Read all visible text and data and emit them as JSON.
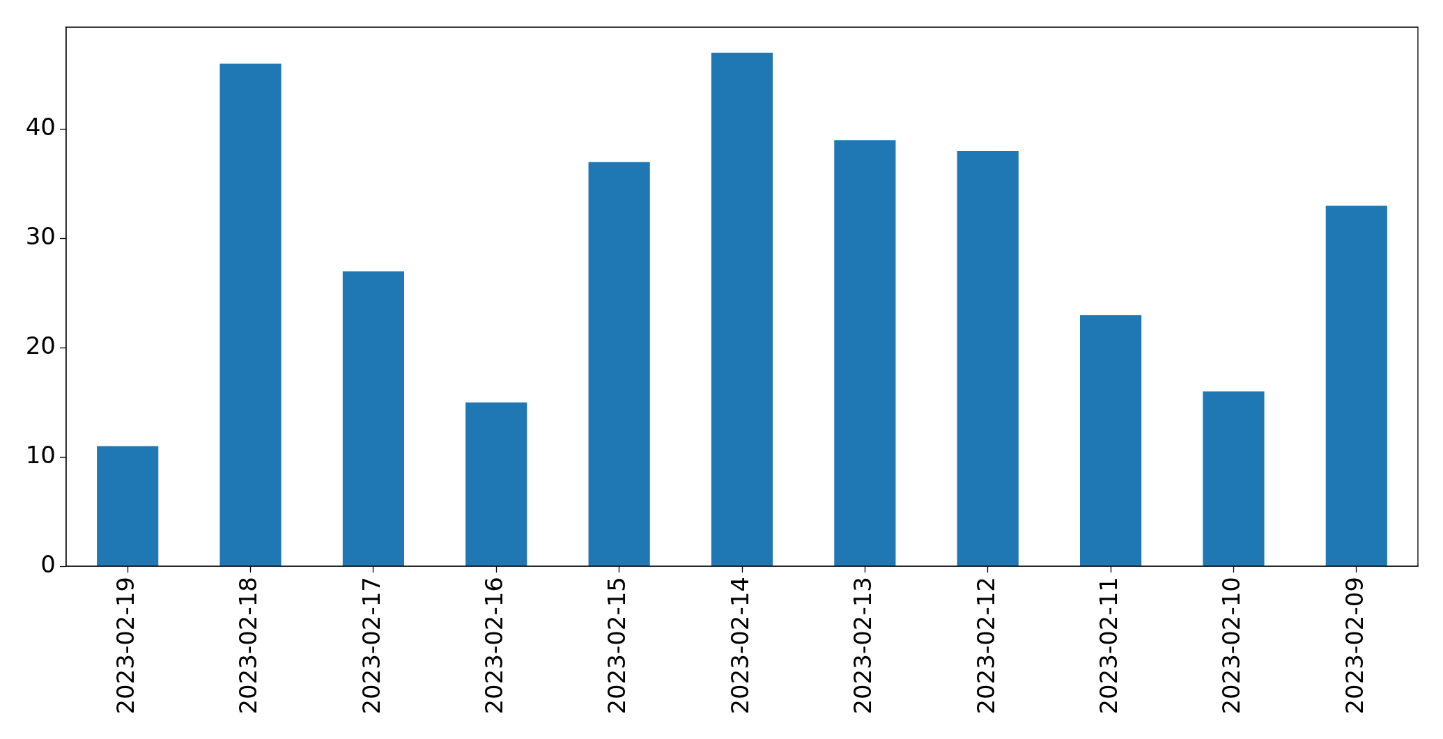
{
  "chart_data": {
    "type": "bar",
    "categories": [
      "2023-02-19",
      "2023-02-18",
      "2023-02-17",
      "2023-02-16",
      "2023-02-15",
      "2023-02-14",
      "2023-02-13",
      "2023-02-12",
      "2023-02-11",
      "2023-02-10",
      "2023-02-09"
    ],
    "values": [
      11,
      46,
      27,
      15,
      37,
      47,
      39,
      38,
      23,
      16,
      33
    ],
    "color": "#1f77b4",
    "ylim": [
      0,
      49.35
    ],
    "yticks": [
      0,
      10,
      20,
      30,
      40
    ],
    "grid": false
  }
}
